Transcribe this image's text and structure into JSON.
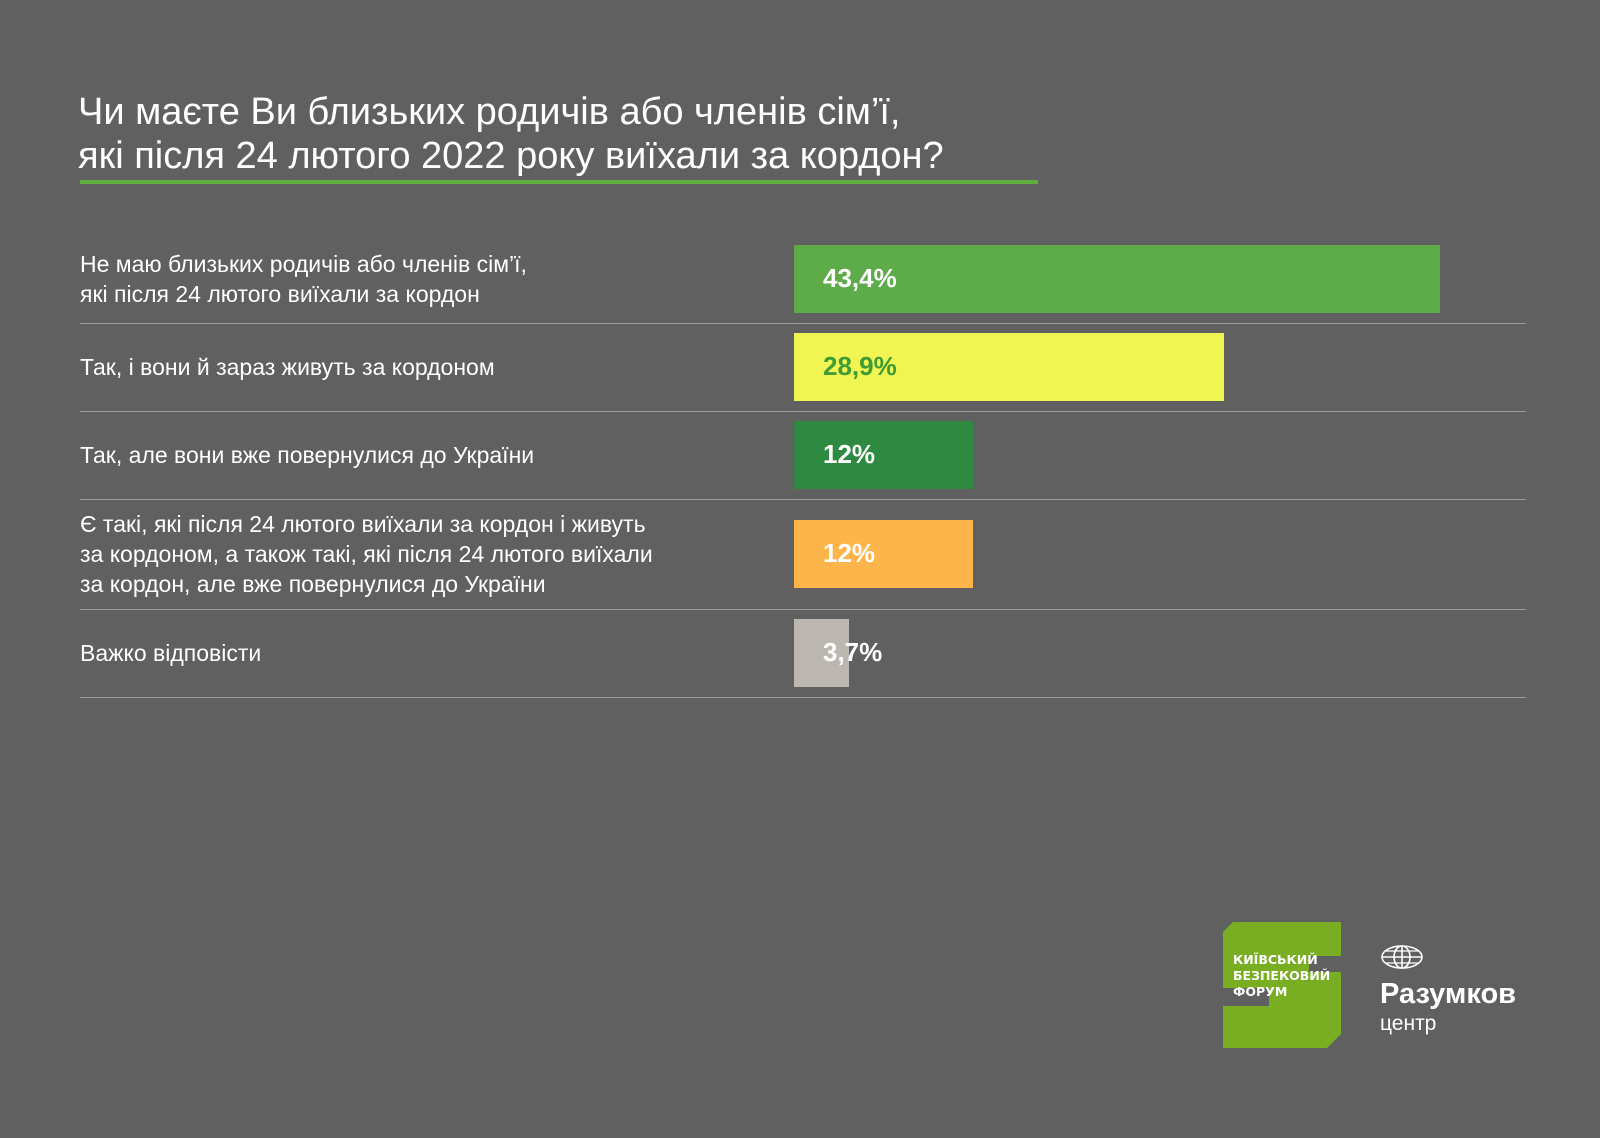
{
  "title": {
    "line1": "Чи маєте Ви близьких родичів або членів сім’ї,",
    "line2": "які після 24 лютого 2022 року виїхали за кордон?"
  },
  "colors": {
    "background": "#606060",
    "accent": "#5fae3e"
  },
  "chart_data": {
    "type": "bar",
    "orientation": "horizontal",
    "title": "Чи маєте Ви близьких родичів або членів сім’ї, які після 24 лютого 2022 року виїхали за кордон?",
    "xlabel": "",
    "ylabel": "",
    "xlim": [
      0,
      43.4
    ],
    "unit": "%",
    "categories": [
      "Не маю близьких родичів або членів сім’ї,\nякі після 24 лютого виїхали за кордон",
      "Так, і вони й зараз живуть за кордоном",
      "Так, але вони вже повернулися до України",
      "Є такі, які після 24 лютого виїхали за кордон і живуть\nза кордоном, а також такі, які після 24 лютого виїхали\nза кордон, але вже повернулися до України",
      "Важко відповісти"
    ],
    "values": [
      43.4,
      28.9,
      12,
      12,
      3.7
    ],
    "value_labels": [
      "43,4%",
      "28,9%",
      "12%",
      "12%",
      "3,7%"
    ],
    "bar_colors": [
      "#5dab49",
      "#f0f551",
      "#2f8a41",
      "#fdb44a",
      "#bcb8b1"
    ],
    "label_colors": [
      "#ffffff",
      "#3f9b36",
      "#ffffff",
      "#ffffff",
      "#ffffff"
    ]
  },
  "logos": {
    "kbf": {
      "line1": "КИЇВСЬКИЙ",
      "line2": "БЕЗПЕКОВИЙ",
      "line3": "ФОРУМ",
      "color": "#79ad22"
    },
    "razumkov": {
      "name": "Разумков",
      "sub": "центр"
    }
  }
}
